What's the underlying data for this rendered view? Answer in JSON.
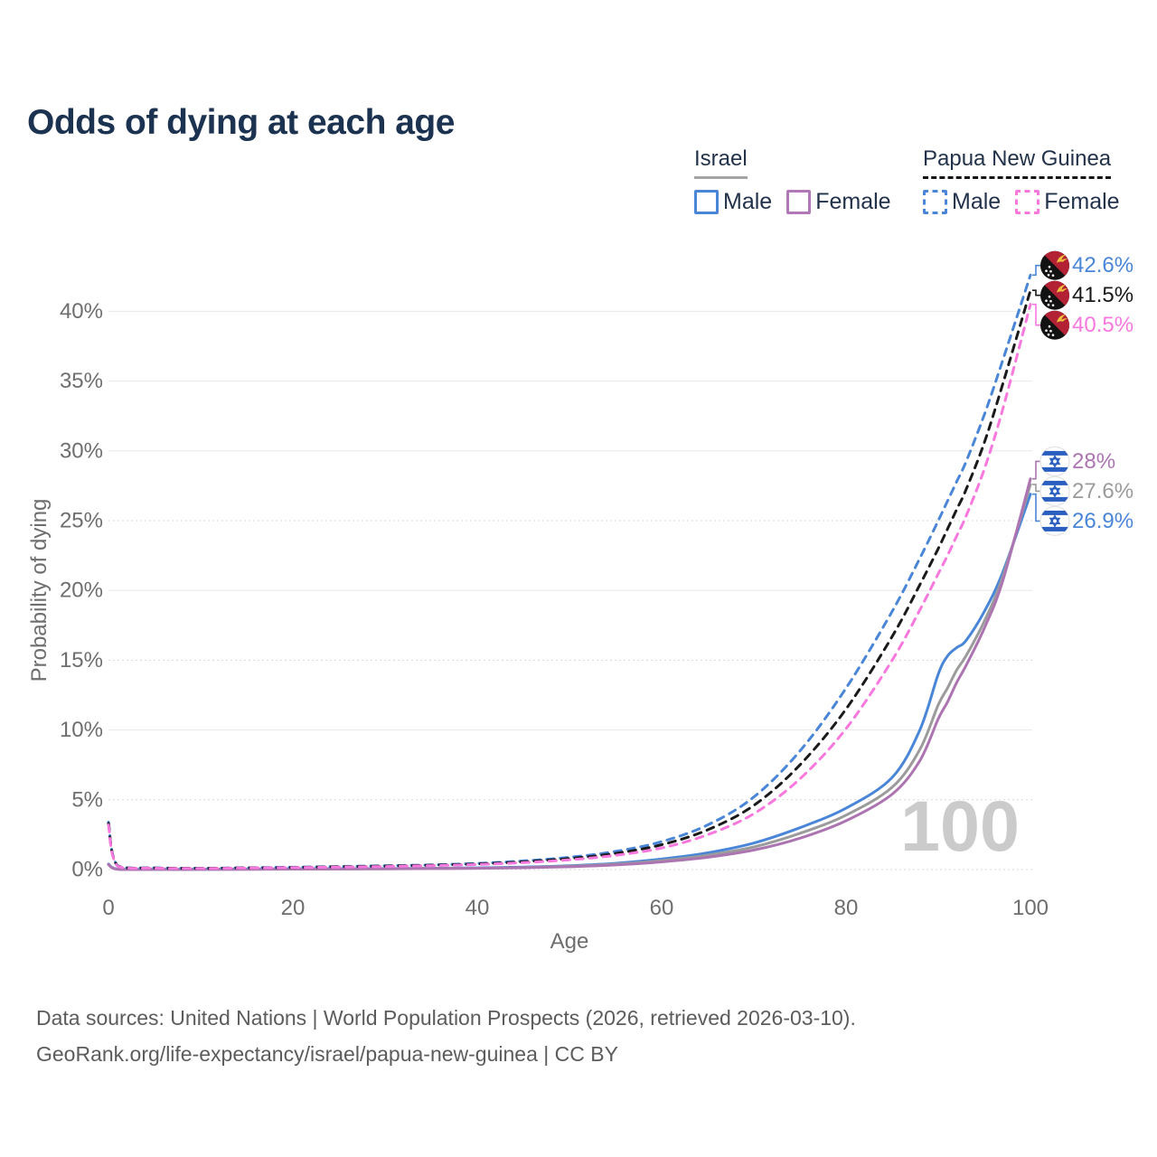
{
  "header": {
    "title": "Odds of dying at each age"
  },
  "legend": {
    "groups": [
      {
        "title": "Israel",
        "underline": "solid",
        "underline_color": "#a3a3a3",
        "items": [
          {
            "label": "Male",
            "color": "#4a86d8",
            "dashed": false
          },
          {
            "label": "Female",
            "color": "#b078b6",
            "dashed": false
          }
        ]
      },
      {
        "title": "Papua New Guinea",
        "underline": "dashed",
        "underline_color": "#141414",
        "items": [
          {
            "label": "Male",
            "color": "#4a86d8",
            "dashed": true
          },
          {
            "label": "Female",
            "color": "#f878de",
            "dashed": true
          }
        ]
      }
    ]
  },
  "chart_data": {
    "type": "line",
    "title": "Odds of dying at each age",
    "xlabel": "Age",
    "ylabel": "Probability of dying",
    "xlim": [
      0,
      100
    ],
    "ylim": [
      0,
      44
    ],
    "grid": true,
    "legend_position": "top-right",
    "x_ticks": [
      0,
      20,
      40,
      60,
      80,
      100
    ],
    "y_ticks": [
      {
        "value": 0,
        "label": "0%"
      },
      {
        "value": 5,
        "label": "5%"
      },
      {
        "value": 10,
        "label": "10%"
      },
      {
        "value": 15,
        "label": "15%"
      },
      {
        "value": 20,
        "label": "20%"
      },
      {
        "value": 25,
        "label": "25%"
      },
      {
        "value": 30,
        "label": "30%"
      },
      {
        "value": 35,
        "label": "35%"
      },
      {
        "value": 40,
        "label": "40%"
      }
    ],
    "watermark": "100",
    "ages": [
      0,
      1,
      5,
      10,
      15,
      20,
      25,
      30,
      35,
      40,
      45,
      50,
      55,
      60,
      65,
      70,
      75,
      80,
      85,
      88,
      90,
      91,
      92,
      93,
      95,
      97,
      100
    ],
    "series": [
      {
        "id": "israel-male",
        "country": "il",
        "group": "Israel",
        "sex": "male",
        "color": "#4a86d8",
        "dashed": false,
        "end_label": "26.9%",
        "values": [
          0.4,
          0.03,
          0.01,
          0.01,
          0.03,
          0.05,
          0.06,
          0.07,
          0.09,
          0.12,
          0.18,
          0.28,
          0.45,
          0.75,
          1.2,
          1.9,
          3.0,
          4.4,
          6.6,
          10.0,
          14.0,
          15.3,
          15.9,
          16.4,
          18.5,
          21.3,
          26.9
        ]
      },
      {
        "id": "israel-combined",
        "country": "il",
        "group": "Israel",
        "sex": "combined",
        "color": "#9b9b9b",
        "dashed": false,
        "end_label": "27.6%",
        "values": [
          0.37,
          0.025,
          0.01,
          0.01,
          0.025,
          0.04,
          0.05,
          0.06,
          0.08,
          0.1,
          0.15,
          0.24,
          0.39,
          0.64,
          1.03,
          1.62,
          2.6,
          3.9,
          5.9,
          8.6,
          11.8,
          13.0,
          14.3,
          15.3,
          17.8,
          21.0,
          27.6
        ]
      },
      {
        "id": "israel-female",
        "country": "il",
        "group": "Israel",
        "sex": "female",
        "color": "#ad74b2",
        "dashed": false,
        "end_label": "28%",
        "values": [
          0.35,
          0.02,
          0.01,
          0.01,
          0.02,
          0.03,
          0.04,
          0.05,
          0.07,
          0.09,
          0.13,
          0.2,
          0.33,
          0.55,
          0.88,
          1.4,
          2.25,
          3.5,
          5.4,
          7.8,
          10.8,
          12.0,
          13.4,
          14.6,
          17.3,
          20.7,
          28.0
        ]
      },
      {
        "id": "png-male",
        "country": "pg",
        "group": "Papua New Guinea",
        "sex": "male",
        "color": "#4a86d8",
        "dashed": true,
        "end_label": "42.6%",
        "values": [
          3.4,
          0.28,
          0.12,
          0.1,
          0.13,
          0.17,
          0.22,
          0.27,
          0.34,
          0.44,
          0.62,
          0.88,
          1.3,
          2.0,
          3.2,
          5.2,
          8.5,
          13.0,
          18.5,
          22.3,
          25.0,
          26.4,
          27.8,
          29.2,
          32.6,
          36.5,
          42.6
        ]
      },
      {
        "id": "png-combined",
        "country": "pg",
        "group": "Papua New Guinea",
        "sex": "combined",
        "color": "#1a1a1a",
        "dashed": true,
        "end_label": "41.5%",
        "values": [
          3.3,
          0.26,
          0.11,
          0.09,
          0.12,
          0.15,
          0.2,
          0.25,
          0.31,
          0.4,
          0.56,
          0.79,
          1.16,
          1.78,
          2.85,
          4.6,
          7.5,
          11.5,
          16.7,
          20.4,
          23.0,
          24.4,
          25.8,
          27.2,
          30.6,
          34.8,
          41.5
        ]
      },
      {
        "id": "png-female",
        "country": "pg",
        "group": "Papua New Guinea",
        "sex": "female",
        "color": "#f878de",
        "dashed": true,
        "end_label": "40.5%",
        "values": [
          3.2,
          0.24,
          0.1,
          0.08,
          0.11,
          0.14,
          0.18,
          0.22,
          0.28,
          0.36,
          0.5,
          0.7,
          1.02,
          1.55,
          2.5,
          4.0,
          6.5,
          10.1,
          15.0,
          18.6,
          21.2,
          22.5,
          23.9,
          25.3,
          28.7,
          33.0,
          40.5
        ]
      }
    ],
    "flag_colors": {
      "israel_blue": "#2a5fc0",
      "png_red": "#b22234",
      "png_black": "#121212",
      "png_gold": "#eec23e"
    }
  },
  "footer": {
    "line1": "Data sources: United Nations | World Population Prospects (2026, retrieved 2026-03-10).",
    "line2": "GeoRank.org/life-expectancy/israel/papua-new-guinea | CC BY"
  },
  "style_colors": {
    "title": "#1b3250",
    "axis_text": "#6e6e6e",
    "grid_solid": "#e8e8e8",
    "grid_dotted": "#d9d9d9",
    "watermark": "#cbcbcb",
    "footer_text": "#5c5c5c",
    "legend_text": "#22324a"
  }
}
